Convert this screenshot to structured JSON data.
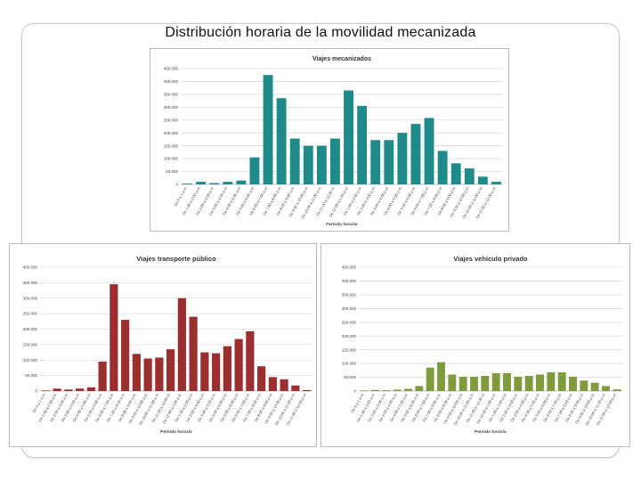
{
  "page": {
    "title": "Distribución horaria de la movilidad mecanizada"
  },
  "charts": [
    {
      "id": "mecanizados",
      "type": "bar",
      "title": "Viajes mecanizados",
      "xlabel": "Período horario",
      "color": "#1f8a8a",
      "ylim": [
        0,
        450000
      ],
      "ytick_labels": [
        "0",
        "50.000",
        "100.000",
        "150.000",
        "200.000",
        "250.000",
        "300.000",
        "350.000",
        "400.000",
        "450.000"
      ],
      "categories": [
        "De 0 a 1 a.m.",
        "De 1:00 a 2:00 a.m.",
        "De 2:00 a 3:00 a.m.",
        "De 3:00 a 4:00 a.m.",
        "De 4:00 a 5:00 a.m.",
        "De 5:00 a 6:00 a.m.",
        "De 6:00 a 7:00 a.m.",
        "De 7:00 a 8:00 a.m.",
        "De 8:00 a 9:00 a.m.",
        "De 9:00 a 10:00 a.m.",
        "De 10:00 a 11:00 a.m.",
        "De 11:00 a 12:00 m.",
        "De 12:00 a 1:00 p.m.",
        "De 1:00 a 2:00 p.m.",
        "De 2:00 a 3:00 p.m.",
        "De 3:00 a 4:00 p.m.",
        "De 4:00 a 5:00 p.m.",
        "De 5:00 a 6:00 p.m.",
        "De 6:00 a 7:00 p.m.",
        "De 7:00 a 8:00 p.m.",
        "De 8:00 a 9:00 p.m.",
        "De 9:00 a 10:00 p.m.",
        "De 10:00 a 11:00 p.m.",
        "De 11:00 a 12:00 p.m."
      ],
      "values": [
        3000,
        10000,
        5000,
        10000,
        15000,
        105000,
        425000,
        335000,
        178000,
        150000,
        150000,
        178000,
        365000,
        305000,
        172000,
        172000,
        200000,
        235000,
        258000,
        130000,
        82000,
        62000,
        30000,
        10000
      ]
    },
    {
      "id": "transporte-publico",
      "type": "bar",
      "title": "Viajes transporte público",
      "xlabel": "Período horario",
      "color": "#9b2f2f",
      "ylim": [
        0,
        400000
      ],
      "ytick_labels": [
        "0",
        "50.000",
        "100.000",
        "150.000",
        "200.000",
        "250.000",
        "300.000",
        "350.000",
        "400.000"
      ],
      "categories": [
        "De 0 a 1 a.m.",
        "De 1:00 a 2:00 a.m.",
        "De 2:00 a 3:00 a.m.",
        "De 3:00 a 4:00 a.m.",
        "De 4:00 a 5:00 a.m.",
        "De 5:00 a 6:00 a.m.",
        "De 6:00 a 7:00 a.m.",
        "De 7:00 a 8:00 a.m.",
        "De 8:00 a 9:00 a.m.",
        "De 9:00 a 10:00 a.m.",
        "De 10:00 a 11:00 a.m.",
        "De 11:00 a 12:00 m.",
        "De 12:00 a 1:00 p.m.",
        "De 1:00 a 2:00 p.m.",
        "De 2:00 a 3:00 p.m.",
        "De 3:00 a 4:00 p.m.",
        "De 4:00 a 5:00 p.m.",
        "De 5:00 a 6:00 p.m.",
        "De 6:00 a 7:00 p.m.",
        "De 7:00 a 8:00 p.m.",
        "De 8:00 a 9:00 p.m.",
        "De 9:00 a 10:00 p.m.",
        "De 10:00 a 11:00 p.m.",
        "De 11:00 a 12:00 p.m."
      ],
      "values": [
        2000,
        8000,
        5000,
        8000,
        12000,
        95000,
        345000,
        230000,
        120000,
        105000,
        108000,
        135000,
        300000,
        240000,
        125000,
        122000,
        145000,
        168000,
        193000,
        80000,
        45000,
        38000,
        18000,
        3000
      ]
    },
    {
      "id": "vehiculo-privado",
      "type": "bar",
      "title": "Viajes vehículo privado",
      "xlabel": "Período horario",
      "color": "#7e9b3e",
      "ylim": [
        0,
        450000
      ],
      "ytick_labels": [
        "0",
        "50.000",
        "100.000",
        "150.000",
        "200.000",
        "250.000",
        "300.000",
        "350.000",
        "400.000",
        "450.000"
      ],
      "categories": [
        "De 0 a 1 a.m.",
        "De 1:00 a 2:00 a.m.",
        "De 2:00 a 3:00 a.m.",
        "De 3:00 a 4:00 a.m.",
        "De 4:00 a 5:00 a.m.",
        "De 5:00 a 6:00 a.m.",
        "De 6:00 a 7:00 a.m.",
        "De 7:00 a 8:00 a.m.",
        "De 8:00 a 9:00 a.m.",
        "De 9:00 a 10:00 a.m.",
        "De 10:00 a 11:00 a.m.",
        "De 11:00 a 12:00 m.",
        "De 12:00 a 1:00 p.m.",
        "De 1:00 a 2:00 p.m.",
        "De 2:00 a 3:00 p.m.",
        "De 3:00 a 4:00 p.m.",
        "De 4:00 a 5:00 p.m.",
        "De 5:00 a 6:00 p.m.",
        "De 6:00 a 7:00 p.m.",
        "De 7:00 a 8:00 p.m.",
        "De 8:00 a 9:00 p.m.",
        "De 9:00 a 10:00 p.m.",
        "De 10:00 a 11:00 p.m.",
        "De 11:00 a 12:00 p.m."
      ],
      "values": [
        2000,
        4000,
        3000,
        5000,
        8000,
        18000,
        85000,
        105000,
        60000,
        52000,
        52000,
        55000,
        65000,
        65000,
        52000,
        55000,
        60000,
        68000,
        68000,
        52000,
        38000,
        30000,
        18000,
        6000
      ]
    }
  ]
}
